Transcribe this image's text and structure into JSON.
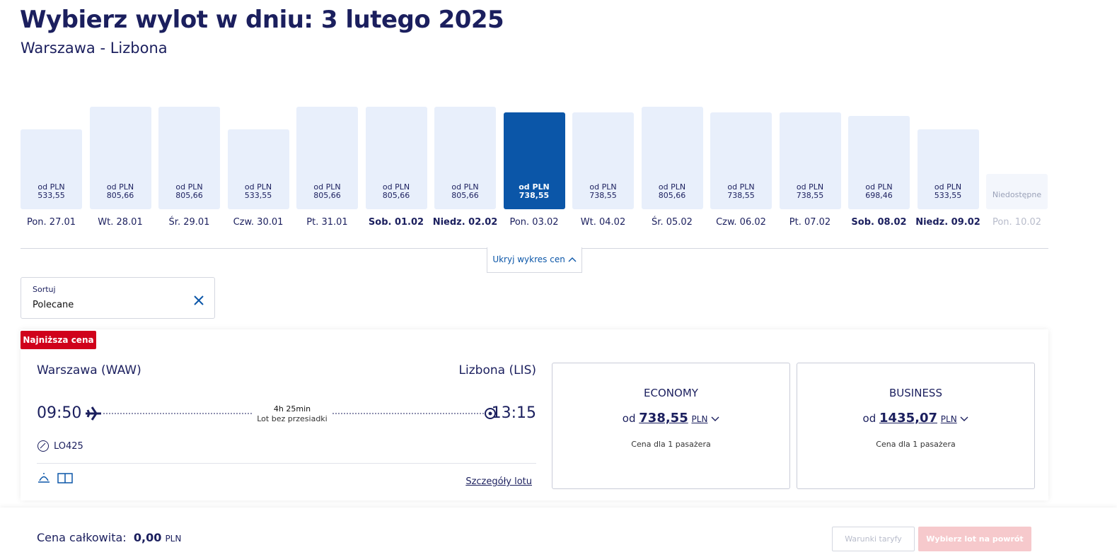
{
  "header": {
    "title": "Wybierz wylot w dniu: 3 lutego 2025",
    "subtitle": "Warszawa - Lizbona"
  },
  "price_calendar": {
    "price_prefix": "od PLN",
    "unavailable_label": "Niedostępne",
    "toggle": "Ukryj wykres cen",
    "days": [
      {
        "date": "Pon. 27.01",
        "price": "533,55"
      },
      {
        "date": "Wt. 28.01",
        "price": "805,66"
      },
      {
        "date": "Śr. 29.01",
        "price": "805,66"
      },
      {
        "date": "Czw. 30.01",
        "price": "533,55"
      },
      {
        "date": "Pt. 31.01",
        "price": "805,66"
      },
      {
        "date": "Sob. 01.02",
        "price": "805,66",
        "bold": true
      },
      {
        "date": "Niedz. 02.02",
        "price": "805,66",
        "bold": true
      },
      {
        "date": "Pon. 03.02",
        "price": "738,55",
        "selected": true
      },
      {
        "date": "Wt. 04.02",
        "price": "738,55"
      },
      {
        "date": "Śr. 05.02",
        "price": "805,66"
      },
      {
        "date": "Czw. 06.02",
        "price": "738,55"
      },
      {
        "date": "Pt. 07.02",
        "price": "738,55"
      },
      {
        "date": "Sob. 08.02",
        "price": "698,46",
        "bold": true
      },
      {
        "date": "Niedz. 09.02",
        "price": "533,55",
        "bold": true
      },
      {
        "date": "Pon. 10.02",
        "price": null
      }
    ]
  },
  "sort": {
    "label": "Sortuj",
    "value": "Polecane"
  },
  "flight": {
    "badge": "Najniższa cena",
    "origin": "Warszawa (WAW)",
    "destination": "Lizbona (LIS)",
    "departure": "09:50",
    "arrival": "13:15",
    "duration": "4h 25min",
    "stops": "Lot bez przesiadki",
    "flight_number": "LO425",
    "details_link": "Szczegóły lotu",
    "fares": [
      {
        "cabin": "ECONOMY",
        "prefix": "od",
        "price": "738,55",
        "currency": "PLN",
        "note": "Cena dla 1 pasażera"
      },
      {
        "cabin": "BUSINESS",
        "prefix": "od",
        "price": "1435,07",
        "currency": "PLN",
        "note": "Cena dla 1 pasażera"
      }
    ]
  },
  "footer": {
    "total_label": "Cena całkowita:",
    "total": "0,00",
    "currency": "PLN",
    "fare_rules_button": "Warunki taryfy",
    "return_button": "Wybierz lot na powrót"
  }
}
